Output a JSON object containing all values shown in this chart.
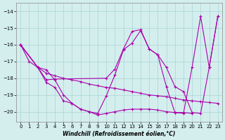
{
  "xlabel": "Windchill (Refroidissement éolien,°C)",
  "line_color": "#aa00aa",
  "bg_color": "#d4eeee",
  "grid_color": "#aad4d4",
  "xlim": [
    -0.5,
    23.5
  ],
  "ylim": [
    -20.6,
    -13.5
  ],
  "xticks": [
    0,
    1,
    2,
    3,
    4,
    5,
    6,
    7,
    8,
    9,
    10,
    11,
    12,
    13,
    14,
    15,
    16,
    17,
    18,
    19,
    20,
    21,
    22,
    23
  ],
  "yticks": [
    -14,
    -15,
    -16,
    -17,
    -18,
    -19,
    -20
  ],
  "line_A": {
    "x": [
      0,
      1,
      2,
      3,
      4,
      5,
      6,
      7,
      8,
      9,
      10,
      11,
      12,
      13,
      14,
      15,
      16,
      17,
      18,
      19,
      20,
      21,
      22,
      23
    ],
    "y": [
      -16.0,
      -17.0,
      -17.35,
      -17.5,
      -18.1,
      -19.0,
      -19.5,
      -19.85,
      -20.0,
      -20.1,
      -19.05,
      -17.8,
      -16.3,
      -15.9,
      -15.15,
      -16.25,
      -16.6,
      -17.35,
      -18.5,
      -18.8,
      -20.05,
      -20.1,
      -17.35,
      -14.3
    ]
  },
  "line_B": {
    "x": [
      0,
      2,
      3,
      4,
      10,
      11,
      12,
      13,
      14,
      15,
      16,
      17,
      18,
      19,
      20,
      21,
      22,
      23
    ],
    "y": [
      -16.0,
      -17.35,
      -18.1,
      -18.05,
      -18.0,
      -17.45,
      -16.25,
      -15.2,
      -15.1,
      -16.25,
      -16.6,
      -18.5,
      -20.05,
      -20.1,
      -17.35,
      -14.3,
      -17.35,
      -14.3
    ]
  },
  "line_C": {
    "x": [
      0,
      2,
      3,
      4,
      5,
      6,
      7,
      8,
      9,
      10,
      11,
      12,
      13,
      14,
      15,
      16,
      17,
      18,
      19,
      20,
      21,
      22,
      23
    ],
    "y": [
      -16.0,
      -17.35,
      -17.7,
      -17.85,
      -18.0,
      -18.1,
      -18.2,
      -18.35,
      -18.45,
      -18.55,
      -18.6,
      -18.7,
      -18.8,
      -18.9,
      -19.0,
      -19.05,
      -19.1,
      -19.2,
      -19.3,
      -19.35,
      -19.4,
      -19.45,
      -19.5
    ]
  },
  "line_D": {
    "x": [
      0,
      2,
      3,
      4,
      5,
      6,
      7,
      8,
      9,
      10,
      11,
      12,
      13,
      14,
      15,
      16,
      17,
      18,
      19,
      20
    ],
    "y": [
      -16.0,
      -17.35,
      -18.25,
      -18.55,
      -19.35,
      -19.5,
      -19.85,
      -20.0,
      -20.2,
      -20.1,
      -20.0,
      -19.9,
      -19.85,
      -19.85,
      -19.85,
      -19.9,
      -20.0,
      -20.05,
      -20.05,
      -20.1
    ]
  }
}
